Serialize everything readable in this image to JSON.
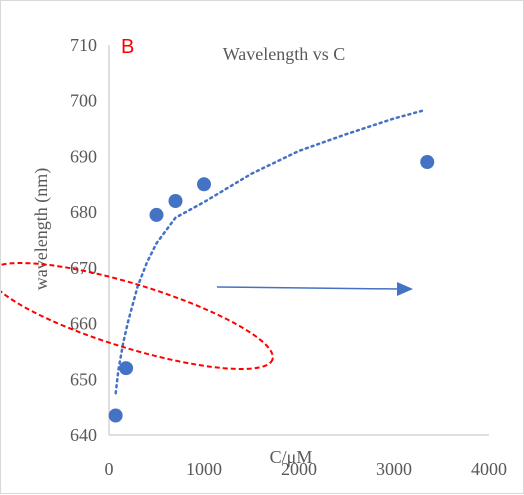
{
  "chart_data": {
    "type": "scatter",
    "panel_label": "B",
    "title": "Wavelength vs C",
    "xlabel": "C/μM",
    "ylabel": "wavelength (nm)",
    "xlim": [
      0,
      4000
    ],
    "ylim": [
      640,
      710
    ],
    "x_ticks": [
      0,
      1000,
      2000,
      3000,
      4000
    ],
    "y_ticks": [
      640,
      650,
      660,
      670,
      680,
      690,
      700,
      710
    ],
    "grid": false,
    "legend": "none",
    "series": [
      {
        "type": "scatter",
        "color": "#4472c4",
        "x": [
          70,
          180,
          500,
          700,
          1000,
          3350
        ],
        "y": [
          643.5,
          652,
          679.5,
          682,
          685,
          689
        ]
      }
    ],
    "trendline": {
      "style": "dotted",
      "color": "#4472c4",
      "fit": "logarithmic",
      "x": [
        70,
        100,
        150,
        200,
        300,
        400,
        500,
        700,
        1000,
        1500,
        2000,
        2500,
        3000,
        3300
      ],
      "y": [
        647.5,
        651.8,
        656.6,
        660.3,
        666.6,
        671,
        674.4,
        679,
        681.8,
        686.9,
        691,
        694,
        696.8,
        698.2
      ]
    },
    "annotations": {
      "ellipse_color": "#ff0000",
      "arrow_color": "#4472c4"
    }
  }
}
